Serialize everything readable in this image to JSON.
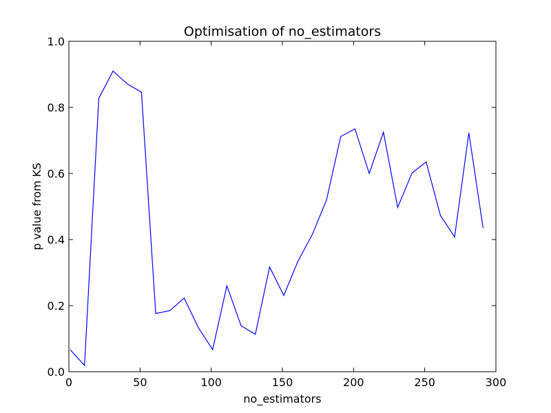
{
  "chart_data": {
    "type": "line",
    "title": "Optimisation of no_estimators",
    "xlabel": "no_estimators",
    "ylabel": "p value from KS",
    "xlim": [
      0,
      300
    ],
    "ylim": [
      0.0,
      1.0
    ],
    "x_ticks": [
      "0",
      "50",
      "100",
      "150",
      "200",
      "250",
      "300"
    ],
    "y_ticks": [
      "0.0",
      "0.2",
      "0.4",
      "0.6",
      "0.8",
      "1.0"
    ],
    "grid": false,
    "series_color": "#0000ff",
    "series": [
      {
        "x": [
          1,
          11,
          21,
          31,
          41,
          51,
          61,
          71,
          81,
          91,
          101,
          111,
          121,
          131,
          141,
          151,
          161,
          171,
          181,
          191,
          201,
          211,
          221,
          231,
          241,
          251,
          261,
          271,
          281,
          291
        ],
        "values": [
          0.066,
          0.019,
          0.827,
          0.91,
          0.871,
          0.846,
          0.176,
          0.185,
          0.223,
          0.133,
          0.067,
          0.26,
          0.139,
          0.113,
          0.317,
          0.231,
          0.335,
          0.415,
          0.52,
          0.712,
          0.735,
          0.6,
          0.725,
          0.497,
          0.601,
          0.635,
          0.473,
          0.408,
          0.723,
          0.435
        ]
      }
    ]
  }
}
